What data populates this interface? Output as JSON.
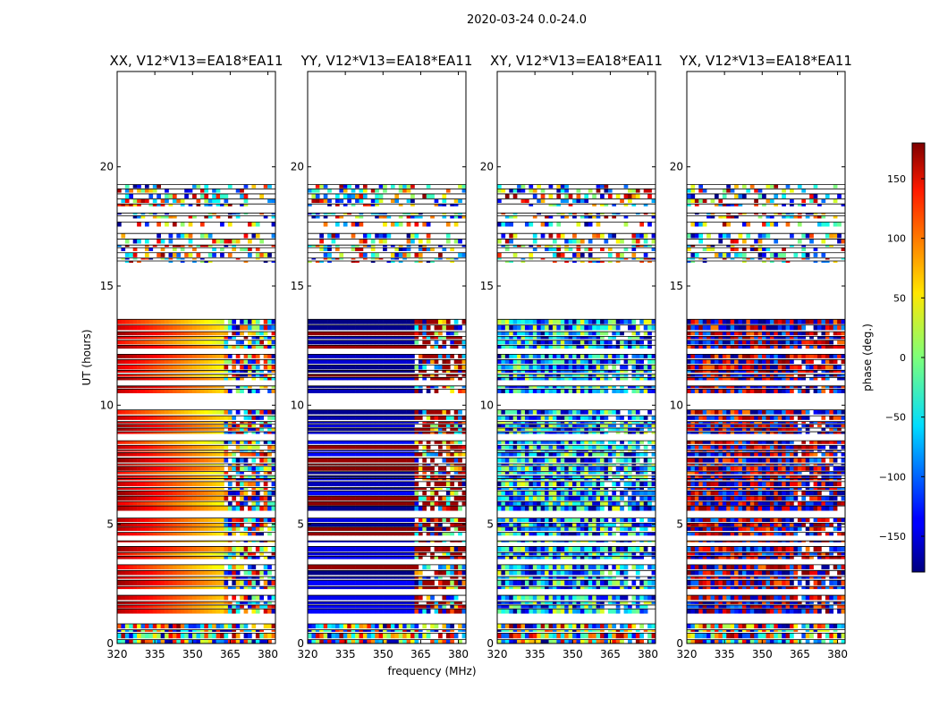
{
  "figure_title": "2020-03-24 0.0-24.0",
  "chart_data": {
    "type": "heatmap",
    "title": "2020-03-24 0.0-24.0",
    "xlabel": "frequency (MHz)",
    "ylabel": "UT (hours)",
    "xlim": [
      320,
      383
    ],
    "ylim": [
      0,
      24
    ],
    "x_ticks": [
      320,
      335,
      350,
      365,
      380
    ],
    "y_ticks": [
      0,
      5,
      10,
      15,
      20
    ],
    "panels": [
      {
        "title": "XX, V12*V13=EA18*EA11",
        "pol": "XX"
      },
      {
        "title": "YY, V12*V13=EA18*EA11",
        "pol": "YY"
      },
      {
        "title": "XY, V12*V13=EA18*EA11",
        "pol": "XY"
      },
      {
        "title": "YX, V12*V13=EA18*EA11",
        "pol": "YX"
      }
    ],
    "colorbar": {
      "label": "phase (deg.)",
      "range": [
        -180,
        180
      ],
      "ticks": [
        -150,
        -100,
        -50,
        0,
        50,
        100,
        150
      ],
      "colormap": "jet"
    },
    "data_gap_hours": [
      [
        13.4,
        15.9
      ],
      [
        19.5,
        24.0
      ]
    ]
  }
}
